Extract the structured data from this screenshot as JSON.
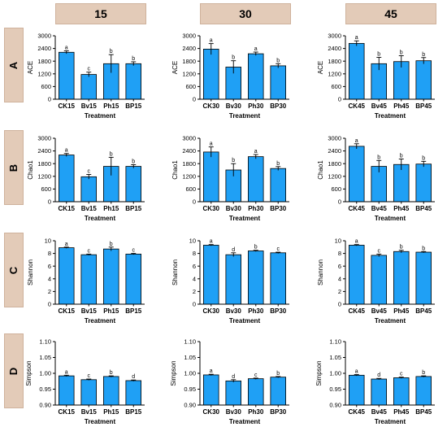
{
  "columns": [
    "15",
    "30",
    "45"
  ],
  "rows": [
    "A",
    "B",
    "C",
    "D"
  ],
  "colors": {
    "bar": "#1fa0f5",
    "bar_edge": "#000000",
    "header_bg": "#e3cbb8"
  },
  "chart_data": [
    {
      "type": "bar",
      "row": "A",
      "column": "15",
      "ylabel": "ACE",
      "xlabel": "Treatment",
      "ylim": [
        0,
        3000
      ],
      "yticks": [
        "0",
        "600",
        "1200",
        "1800",
        "2400",
        "3000"
      ],
      "categories": [
        "CK15",
        "Bv15",
        "Ph15",
        "BP15"
      ],
      "values": [
        2220,
        1170,
        1680,
        1680
      ],
      "errors": [
        70,
        110,
        430,
        90
      ],
      "letters": [
        "a",
        "c",
        "b",
        "b"
      ]
    },
    {
      "type": "bar",
      "row": "A",
      "column": "30",
      "ylabel": "ACE",
      "xlabel": "Treatment",
      "ylim": [
        0,
        3000
      ],
      "yticks": [
        "0",
        "600",
        "1200",
        "1800",
        "2400",
        "3000"
      ],
      "categories": [
        "CK30",
        "Bv30",
        "Ph30",
        "BP30"
      ],
      "values": [
        2370,
        1520,
        2150,
        1580
      ],
      "errors": [
        260,
        300,
        80,
        100
      ],
      "letters": [
        "a",
        "b",
        "a",
        "b"
      ]
    },
    {
      "type": "bar",
      "row": "A",
      "column": "45",
      "ylabel": "ACE",
      "xlabel": "Treatment",
      "ylim": [
        0,
        3000
      ],
      "yticks": [
        "0",
        "600",
        "1200",
        "1800",
        "2400",
        "3000"
      ],
      "categories": [
        "CK45",
        "Bv45",
        "Ph45",
        "BP45"
      ],
      "values": [
        2640,
        1680,
        1780,
        1820
      ],
      "errors": [
        120,
        300,
        280,
        150
      ],
      "letters": [
        "a",
        "b",
        "b",
        "b"
      ]
    },
    {
      "type": "bar",
      "row": "B",
      "column": "15",
      "ylabel": "Chao1",
      "xlabel": "Treatment",
      "ylim": [
        0,
        3000
      ],
      "yticks": [
        "0",
        "600",
        "1200",
        "1800",
        "2400",
        "3000"
      ],
      "categories": [
        "CK15",
        "Bv15",
        "Ph15",
        "BP15"
      ],
      "values": [
        2210,
        1180,
        1670,
        1670
      ],
      "errors": [
        70,
        110,
        430,
        80
      ],
      "letters": [
        "a",
        "c",
        "b",
        "b"
      ]
    },
    {
      "type": "bar",
      "row": "B",
      "column": "30",
      "ylabel": "Chao1",
      "xlabel": "Treatment",
      "ylim": [
        0,
        3000
      ],
      "yticks": [
        "0",
        "600",
        "1200",
        "1800",
        "2400",
        "3000"
      ],
      "categories": [
        "CK30",
        "Bv30",
        "Ph30",
        "BP30"
      ],
      "values": [
        2350,
        1500,
        2130,
        1570
      ],
      "errors": [
        240,
        300,
        100,
        90
      ],
      "letters": [
        "a",
        "b",
        "a",
        "b"
      ]
    },
    {
      "type": "bar",
      "row": "B",
      "column": "45",
      "ylabel": "Chao1",
      "xlabel": "Treatment",
      "ylim": [
        0,
        3000
      ],
      "yticks": [
        "0",
        "600",
        "1200",
        "1800",
        "2400",
        "3000"
      ],
      "categories": [
        "CK45",
        "Bv45",
        "Ph45",
        "BP45"
      ],
      "values": [
        2620,
        1670,
        1760,
        1780
      ],
      "errors": [
        120,
        280,
        260,
        130
      ],
      "letters": [
        "a",
        "b",
        "b",
        "b"
      ]
    },
    {
      "type": "bar",
      "row": "C",
      "column": "15",
      "ylabel": "Shannon",
      "xlabel": "Treatment",
      "ylim": [
        0,
        10
      ],
      "yticks": [
        "0",
        "2",
        "4",
        "6",
        "8",
        "10"
      ],
      "categories": [
        "CK15",
        "Bv15",
        "Ph15",
        "BP15"
      ],
      "values": [
        8.9,
        7.8,
        8.7,
        7.9
      ],
      "errors": [
        0.1,
        0.1,
        0.3,
        0.1
      ],
      "letters": [
        "a",
        "c",
        "b",
        "c"
      ]
    },
    {
      "type": "bar",
      "row": "C",
      "column": "30",
      "ylabel": "Shannon",
      "xlabel": "Treatment",
      "ylim": [
        0,
        10
      ],
      "yticks": [
        "0",
        "2",
        "4",
        "6",
        "8",
        "10"
      ],
      "categories": [
        "CK30",
        "Bv30",
        "Ph30",
        "BP30"
      ],
      "values": [
        9.3,
        7.8,
        8.4,
        8.1
      ],
      "errors": [
        0.1,
        0.3,
        0.1,
        0.1
      ],
      "letters": [
        "a",
        "d",
        "b",
        "c"
      ]
    },
    {
      "type": "bar",
      "row": "C",
      "column": "45",
      "ylabel": "Shannon",
      "xlabel": "Treatment",
      "ylim": [
        0,
        10
      ],
      "yticks": [
        "0",
        "2",
        "4",
        "6",
        "8",
        "10"
      ],
      "categories": [
        "CK45",
        "Bv45",
        "Ph45",
        "BP45"
      ],
      "values": [
        9.3,
        7.7,
        8.3,
        8.2
      ],
      "errors": [
        0.1,
        0.2,
        0.2,
        0.1
      ],
      "letters": [
        "a",
        "c",
        "b",
        "b"
      ]
    },
    {
      "type": "bar",
      "row": "D",
      "column": "15",
      "ylabel": "Simpson",
      "xlabel": "Treatment",
      "ylim": [
        0.9,
        1.1
      ],
      "yticks": [
        "0.90",
        "0.95",
        "1.00",
        "1.05",
        "1.10"
      ],
      "categories": [
        "CK15",
        "Bv15",
        "Ph15",
        "BP15"
      ],
      "values": [
        0.992,
        0.98,
        0.99,
        0.977
      ],
      "errors": [
        0.002,
        0.002,
        0.002,
        0.002
      ],
      "letters": [
        "a",
        "c",
        "b",
        "d"
      ]
    },
    {
      "type": "bar",
      "row": "D",
      "column": "30",
      "ylabel": "Simpson",
      "xlabel": "Treatment",
      "ylim": [
        0.9,
        1.1
      ],
      "yticks": [
        "0.90",
        "0.95",
        "1.00",
        "1.05",
        "1.10"
      ],
      "categories": [
        "CK30",
        "Bv30",
        "Ph30",
        "BP30"
      ],
      "values": [
        0.995,
        0.976,
        0.983,
        0.988
      ],
      "errors": [
        0.002,
        0.004,
        0.002,
        0.002
      ],
      "letters": [
        "a",
        "d",
        "c",
        "b"
      ]
    },
    {
      "type": "bar",
      "row": "D",
      "column": "45",
      "ylabel": "Simpson",
      "xlabel": "Treatment",
      "ylim": [
        0.9,
        1.1
      ],
      "yticks": [
        "0.90",
        "0.95",
        "1.00",
        "1.05",
        "1.10"
      ],
      "categories": [
        "CK45",
        "Bv45",
        "Ph45",
        "BP45"
      ],
      "values": [
        0.994,
        0.982,
        0.986,
        0.99
      ],
      "errors": [
        0.002,
        0.002,
        0.002,
        0.002
      ],
      "letters": [
        "a",
        "d",
        "c",
        "b"
      ]
    }
  ]
}
